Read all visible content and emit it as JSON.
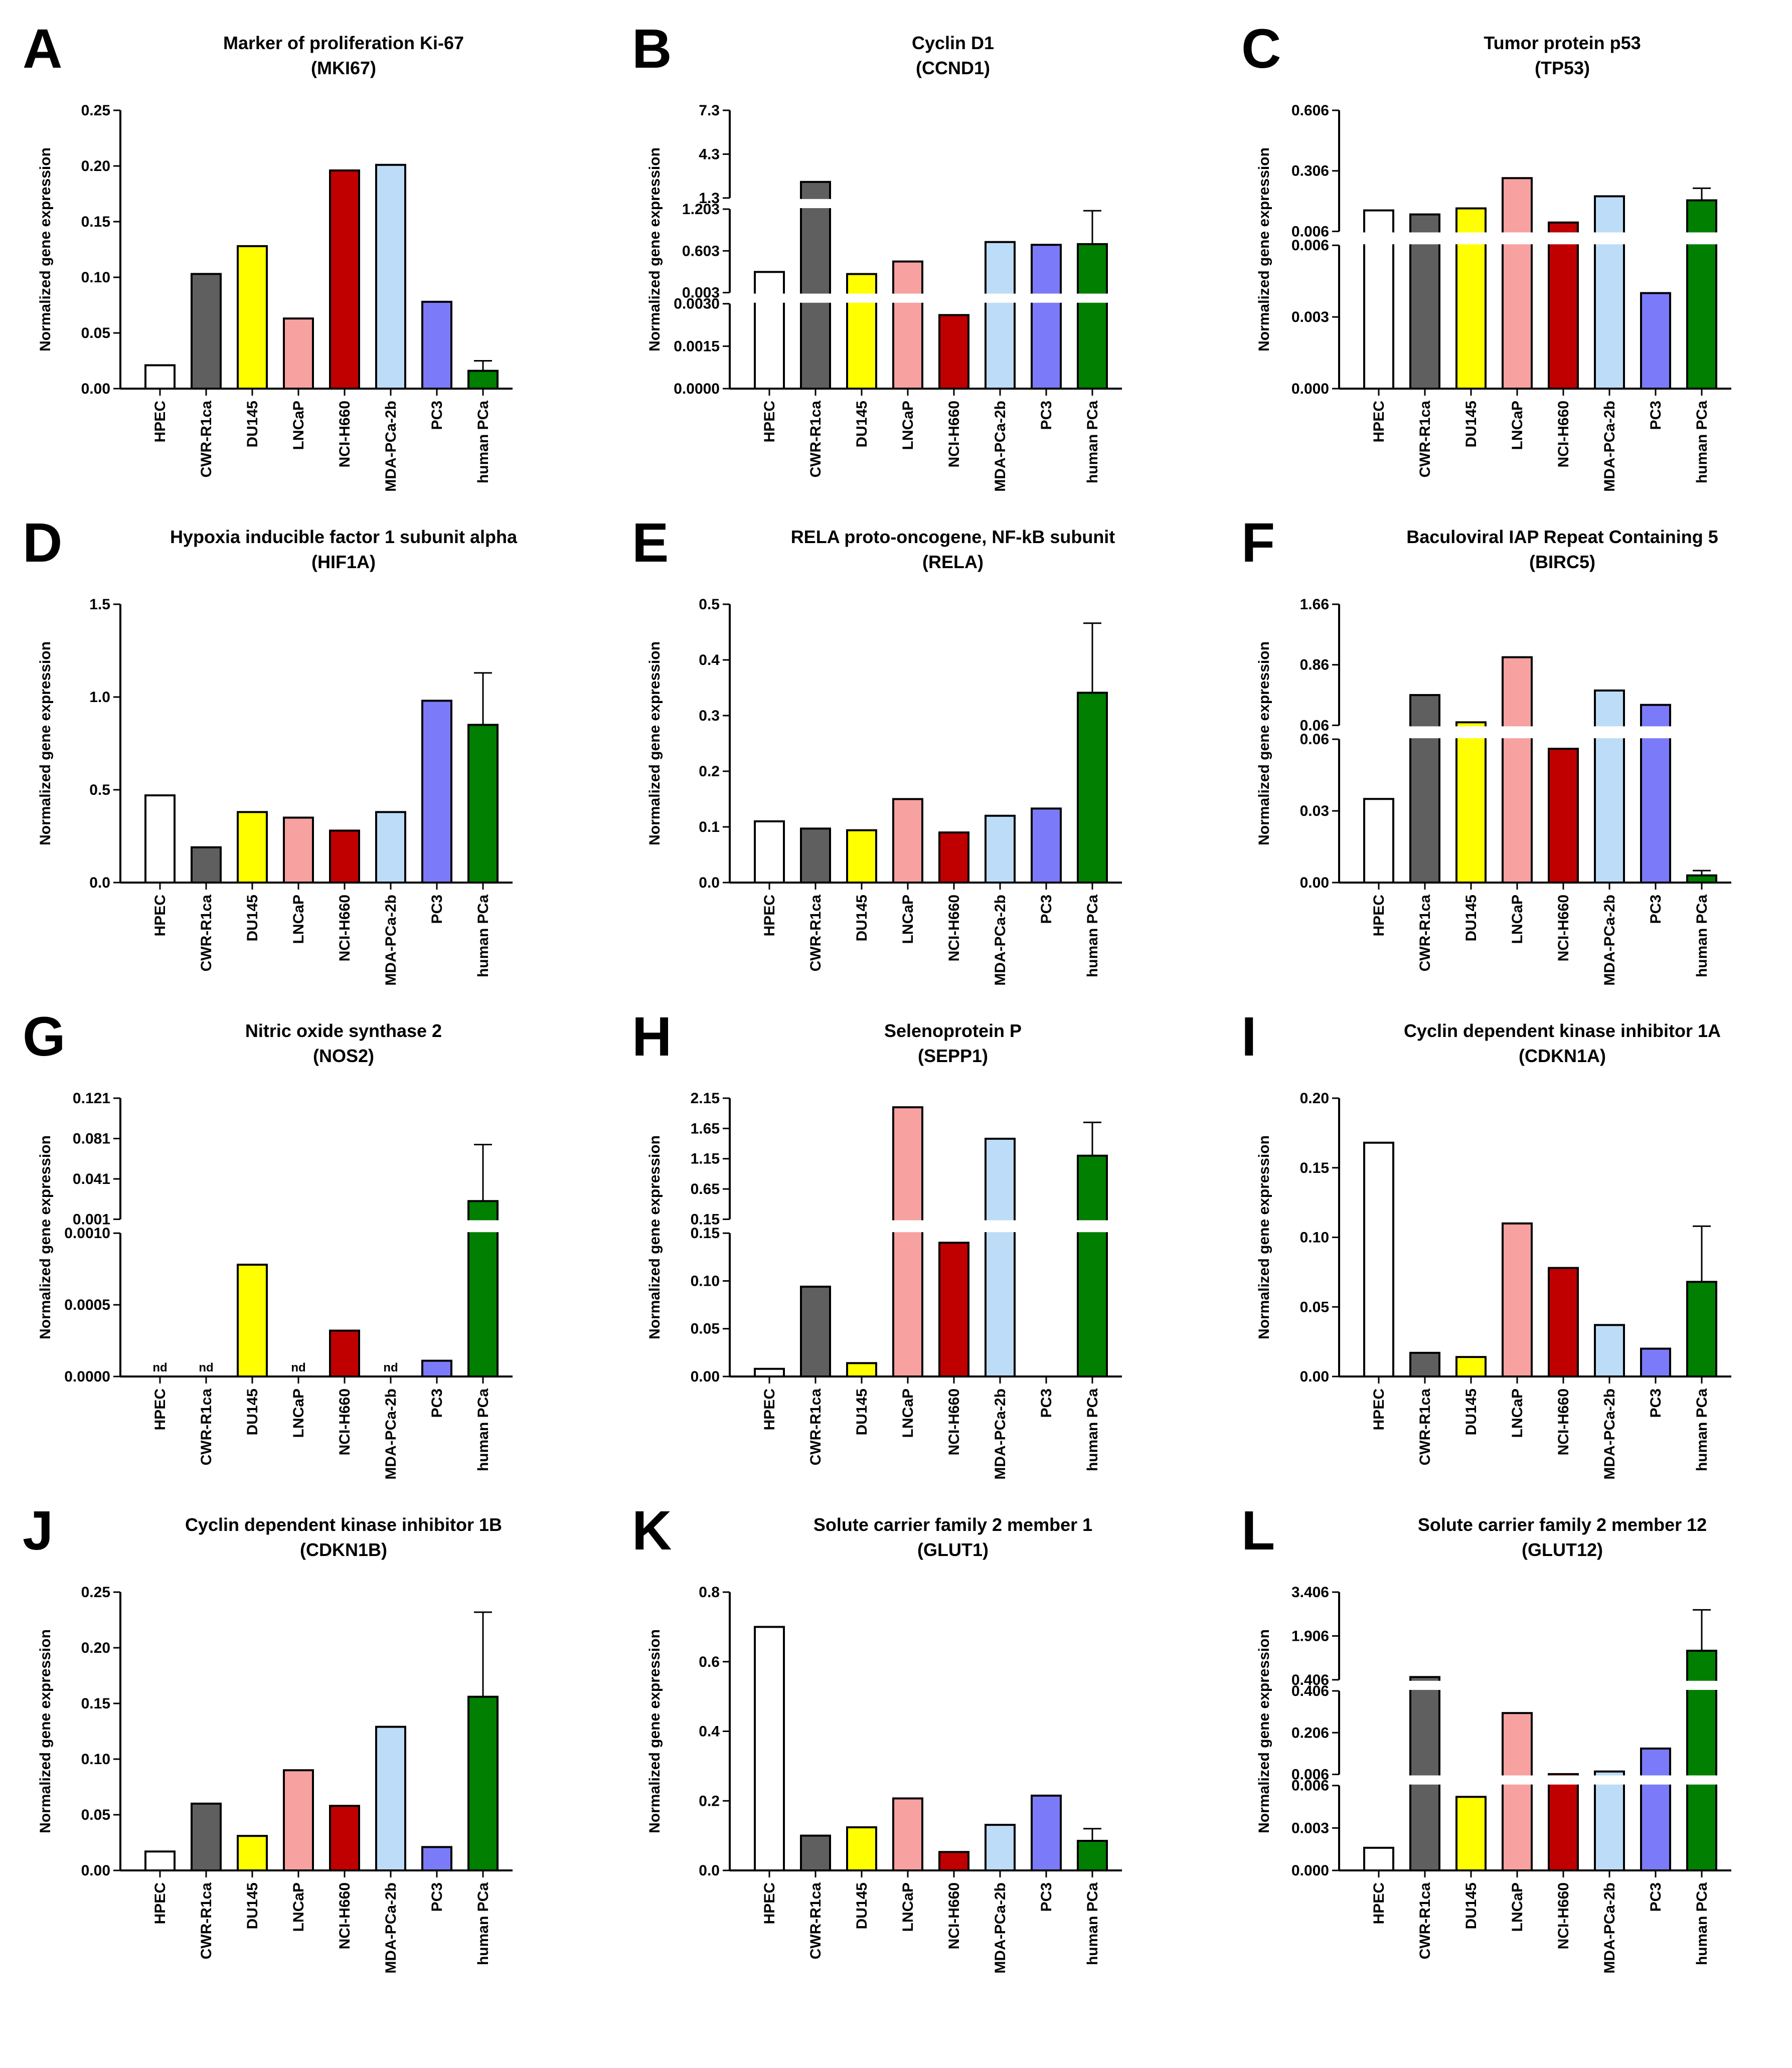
{
  "categories": [
    "HPEC",
    "CWR-R1ca",
    "DU145",
    "LNCaP",
    "NCI-H660",
    "MDA-PCa-2b",
    "PC3",
    "human PCa"
  ],
  "bar_colors": [
    "#ffffff",
    "#5f5f5f",
    "#ffff00",
    "#f7a1a1",
    "#c00000",
    "#bddcf7",
    "#7b7bfa",
    "#007f00"
  ],
  "ylabel": "Normalized gene expression",
  "chart_data": [
    {
      "panel": "A",
      "type": "bar",
      "title": "Marker of proliferation Ki-67",
      "subtitle": "(MKI67)",
      "segments": [
        {
          "range": [
            0,
            0.25
          ],
          "ticks": [
            0,
            0.05,
            0.1,
            0.15,
            0.2,
            0.25
          ],
          "tick_labels": [
            "0.00",
            "0.05",
            "0.10",
            "0.15",
            "0.20",
            "0.25"
          ]
        }
      ],
      "values": [
        0.021,
        0.103,
        0.128,
        0.063,
        0.196,
        0.201,
        0.078,
        0.016
      ],
      "errors": [
        null,
        null,
        null,
        null,
        null,
        null,
        null,
        0.009
      ]
    },
    {
      "panel": "B",
      "type": "bar",
      "title": "Cyclin D1",
      "subtitle": "(CCND1)",
      "segments": [
        {
          "range": [
            0,
            0.003
          ],
          "ticks": [
            0,
            0.0015,
            0.003
          ],
          "tick_labels": [
            "0.0000",
            "0.0015",
            "0.0030"
          ]
        },
        {
          "range": [
            0.003,
            1.203
          ],
          "ticks": [
            0.003,
            0.603,
            1.203
          ],
          "tick_labels": [
            "0.003",
            "0.603",
            "1.203"
          ]
        },
        {
          "range": [
            1.3,
            7.3
          ],
          "ticks": [
            1.3,
            4.3,
            7.3
          ],
          "tick_labels": [
            "1.3",
            "4.3",
            "7.3"
          ]
        }
      ],
      "values": [
        0.3,
        2.4,
        0.27,
        0.45,
        0.0026,
        0.73,
        0.69,
        0.7
      ],
      "errors": [
        null,
        null,
        null,
        null,
        null,
        null,
        null,
        0.48
      ]
    },
    {
      "panel": "C",
      "type": "bar",
      "title": "Tumor protein p53",
      "subtitle": "(TP53)",
      "segments": [
        {
          "range": [
            0,
            0.006
          ],
          "ticks": [
            0,
            0.003,
            0.006
          ],
          "tick_labels": [
            "0.000",
            "0.003",
            "0.006"
          ]
        },
        {
          "range": [
            0.006,
            0.606
          ],
          "ticks": [
            0.006,
            0.306,
            0.606
          ],
          "tick_labels": [
            "0.006",
            "0.306",
            "0.606"
          ]
        }
      ],
      "values": [
        0.11,
        0.09,
        0.12,
        0.27,
        0.05,
        0.18,
        0.004,
        0.16
      ],
      "errors": [
        null,
        null,
        null,
        null,
        null,
        null,
        null,
        0.06
      ]
    },
    {
      "panel": "D",
      "type": "bar",
      "title": "Hypoxia inducible factor 1 subunit alpha",
      "subtitle": "(HIF1A)",
      "segments": [
        {
          "range": [
            0,
            1.5
          ],
          "ticks": [
            0,
            0.5,
            1.0,
            1.5
          ],
          "tick_labels": [
            "0.0",
            "0.5",
            "1.0",
            "1.5"
          ]
        }
      ],
      "values": [
        0.47,
        0.19,
        0.38,
        0.35,
        0.28,
        0.38,
        0.98,
        0.85
      ],
      "errors": [
        null,
        null,
        null,
        null,
        null,
        null,
        null,
        0.28
      ]
    },
    {
      "panel": "E",
      "type": "bar",
      "title": "RELA proto-oncogene, NF-kB subunit",
      "subtitle": "(RELA)",
      "segments": [
        {
          "range": [
            0,
            0.5
          ],
          "ticks": [
            0,
            0.1,
            0.2,
            0.3,
            0.4,
            0.5
          ],
          "tick_labels": [
            "0.0",
            "0.1",
            "0.2",
            "0.3",
            "0.4",
            "0.5"
          ]
        }
      ],
      "values": [
        0.11,
        0.097,
        0.094,
        0.15,
        0.09,
        0.12,
        0.133,
        0.341
      ],
      "errors": [
        null,
        null,
        null,
        null,
        null,
        null,
        null,
        0.125
      ]
    },
    {
      "panel": "F",
      "type": "bar",
      "title": "Baculoviral IAP Repeat Containing 5",
      "subtitle": "(BIRC5)",
      "segments": [
        {
          "range": [
            0,
            0.06
          ],
          "ticks": [
            0,
            0.03,
            0.06
          ],
          "tick_labels": [
            "0.00",
            "0.03",
            "0.06"
          ]
        },
        {
          "range": [
            0.06,
            1.66
          ],
          "ticks": [
            0.06,
            0.86,
            1.66
          ],
          "tick_labels": [
            "0.06",
            "0.86",
            "1.66"
          ]
        }
      ],
      "values": [
        0.035,
        0.46,
        0.1,
        0.96,
        0.056,
        0.52,
        0.33,
        0.003
      ],
      "errors": [
        null,
        null,
        null,
        null,
        null,
        null,
        null,
        0.002
      ]
    },
    {
      "panel": "G",
      "type": "bar",
      "title": "Nitric oxide synthase 2",
      "subtitle": "(NOS2)",
      "segments": [
        {
          "range": [
            0,
            0.001
          ],
          "ticks": [
            0,
            0.0005,
            0.001
          ],
          "tick_labels": [
            "0.0000",
            "0.0005",
            "0.0010"
          ]
        },
        {
          "range": [
            0.001,
            0.121
          ],
          "ticks": [
            0.001,
            0.041,
            0.081,
            0.121
          ],
          "tick_labels": [
            "0.001",
            "0.041",
            "0.081",
            "0.121"
          ]
        }
      ],
      "values": [
        null,
        null,
        0.00078,
        null,
        0.00032,
        null,
        0.00011,
        0.019
      ],
      "errors": [
        null,
        null,
        null,
        null,
        null,
        null,
        null,
        0.056
      ],
      "nd_label": "nd"
    },
    {
      "panel": "H",
      "type": "bar",
      "title": "Selenoprotein P",
      "subtitle": "(SEPP1)",
      "segments": [
        {
          "range": [
            0,
            0.15
          ],
          "ticks": [
            0,
            0.05,
            0.1,
            0.15
          ],
          "tick_labels": [
            "0.00",
            "0.05",
            "0.10",
            "0.15"
          ]
        },
        {
          "range": [
            0.15,
            2.15
          ],
          "ticks": [
            0.15,
            0.65,
            1.15,
            1.65,
            2.15
          ],
          "tick_labels": [
            "0.15",
            "0.65",
            "1.15",
            "1.65",
            "2.15"
          ]
        }
      ],
      "values": [
        0.008,
        0.094,
        0.014,
        2.0,
        0.14,
        1.48,
        0,
        1.2
      ],
      "errors": [
        null,
        null,
        null,
        null,
        null,
        null,
        null,
        0.55
      ]
    },
    {
      "panel": "I",
      "type": "bar",
      "title": "Cyclin dependent kinase inhibitor 1A",
      "subtitle": "(CDKN1A)",
      "segments": [
        {
          "range": [
            0,
            0.2
          ],
          "ticks": [
            0,
            0.05,
            0.1,
            0.15,
            0.2
          ],
          "tick_labels": [
            "0.00",
            "0.05",
            "0.10",
            "0.15",
            "0.20"
          ]
        }
      ],
      "values": [
        0.168,
        0.017,
        0.014,
        0.11,
        0.078,
        0.037,
        0.02,
        0.068
      ],
      "errors": [
        null,
        null,
        null,
        null,
        null,
        null,
        null,
        0.04
      ]
    },
    {
      "panel": "J",
      "type": "bar",
      "title": "Cyclin dependent kinase inhibitor 1B",
      "subtitle": "(CDKN1B)",
      "segments": [
        {
          "range": [
            0,
            0.25
          ],
          "ticks": [
            0,
            0.05,
            0.1,
            0.15,
            0.2,
            0.25
          ],
          "tick_labels": [
            "0.00",
            "0.05",
            "0.10",
            "0.15",
            "0.20",
            "0.25"
          ]
        }
      ],
      "values": [
        0.017,
        0.06,
        0.031,
        0.09,
        0.058,
        0.129,
        0.021,
        0.156
      ],
      "errors": [
        null,
        null,
        null,
        null,
        null,
        null,
        null,
        0.076
      ]
    },
    {
      "panel": "K",
      "type": "bar",
      "title": "Solute carrier family 2 member 1",
      "subtitle": "(GLUT1)",
      "segments": [
        {
          "range": [
            0,
            0.8
          ],
          "ticks": [
            0,
            0.2,
            0.4,
            0.6,
            0.8
          ],
          "tick_labels": [
            "0.0",
            "0.2",
            "0.4",
            "0.6",
            "0.8"
          ]
        }
      ],
      "values": [
        0.7,
        0.1,
        0.124,
        0.207,
        0.053,
        0.131,
        0.215,
        0.085
      ],
      "errors": [
        null,
        null,
        null,
        null,
        null,
        null,
        null,
        0.035
      ]
    },
    {
      "panel": "L",
      "type": "bar",
      "title": "Solute carrier family 2 member 12",
      "subtitle": "(GLUT12)",
      "segments": [
        {
          "range": [
            0,
            0.006
          ],
          "ticks": [
            0,
            0.003,
            0.006
          ],
          "tick_labels": [
            "0.000",
            "0.003",
            "0.006"
          ]
        },
        {
          "range": [
            0.006,
            0.406
          ],
          "ticks": [
            0.006,
            0.206,
            0.406
          ],
          "tick_labels": [
            "0.006",
            "0.206",
            "0.406"
          ]
        },
        {
          "range": [
            0.406,
            3.406
          ],
          "ticks": [
            0.406,
            1.906,
            3.406
          ],
          "tick_labels": [
            "0.406",
            "1.906",
            "3.406"
          ]
        }
      ],
      "values": [
        0.0016,
        0.5,
        0.0052,
        0.3,
        0.0075,
        0.02,
        0.13,
        1.4
      ],
      "errors": [
        null,
        null,
        null,
        null,
        null,
        null,
        null,
        1.4
      ]
    }
  ]
}
